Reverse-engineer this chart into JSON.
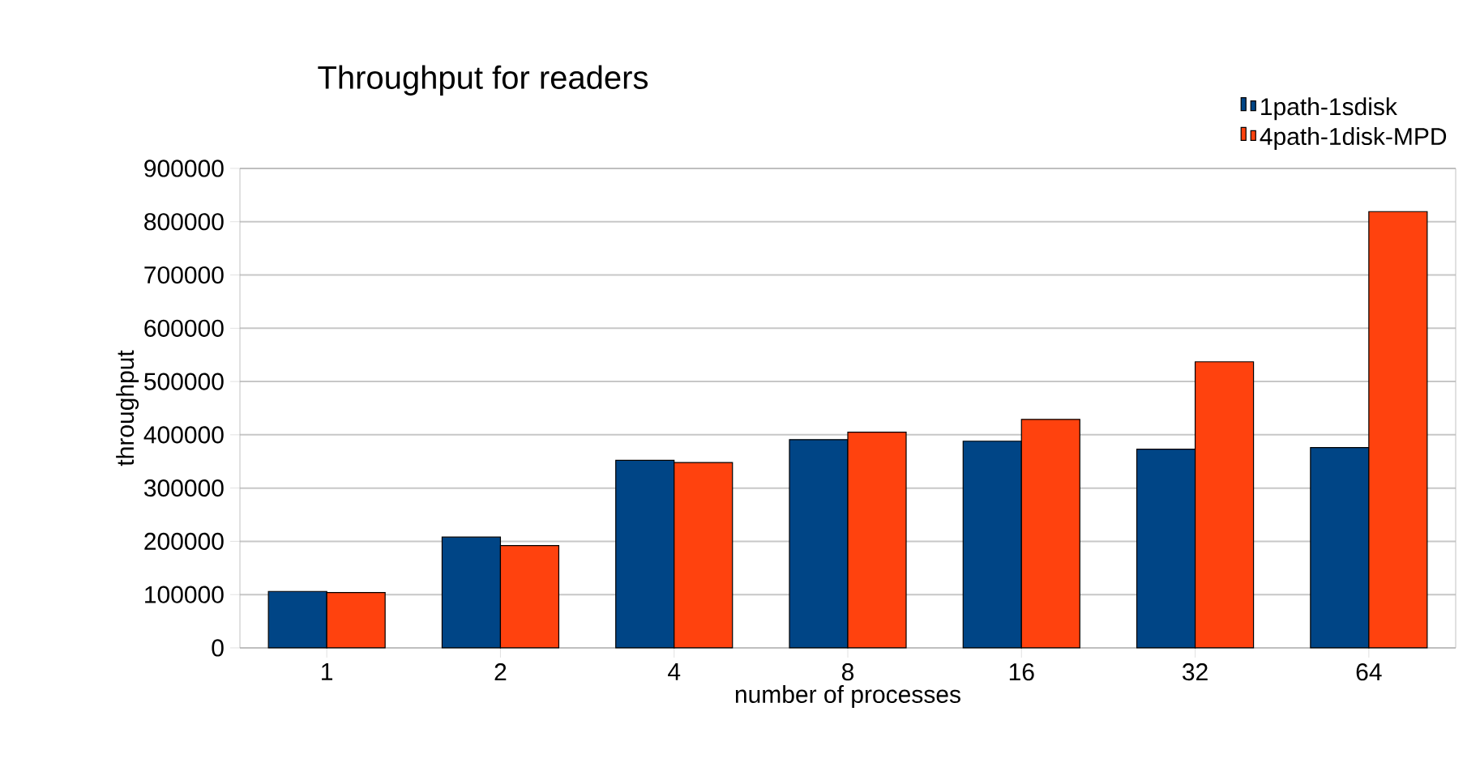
{
  "chart_data": {
    "type": "bar",
    "title": "Throughput for readers",
    "xlabel": "number of processes",
    "ylabel": "throughput",
    "categories": [
      "1",
      "2",
      "4",
      "8",
      "16",
      "32",
      "64"
    ],
    "series": [
      {
        "name": "1path-1sdisk",
        "color": "#004586",
        "values": [
          106000,
          208000,
          352000,
          391000,
          388000,
          373000,
          376000
        ]
      },
      {
        "name": "4path-1disk-MPD",
        "color": "#ff420e",
        "values": [
          104000,
          192000,
          348000,
          405000,
          429000,
          537000,
          819000
        ]
      }
    ],
    "ylim": [
      0,
      900000
    ],
    "yticks": [
      0,
      100000,
      200000,
      300000,
      400000,
      500000,
      600000,
      700000,
      800000,
      900000
    ],
    "grid": "y",
    "legend": "top right"
  }
}
